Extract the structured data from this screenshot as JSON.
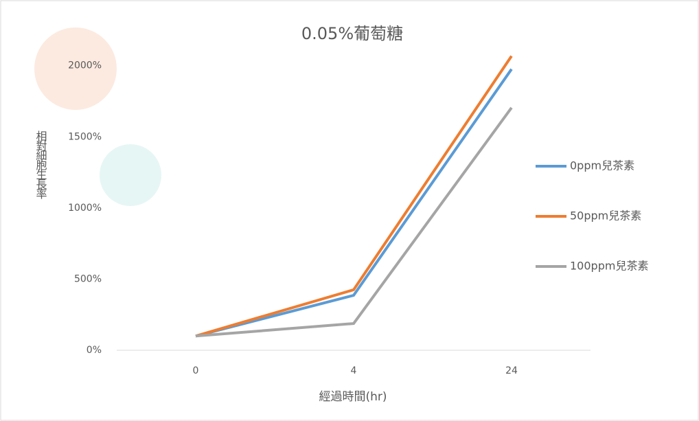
{
  "chart_data": {
    "type": "line",
    "title": "0.05%葡萄糖",
    "x_label": "經過時間(hr)",
    "y_label": "相對細胞生長率",
    "categories": [
      "0",
      "4",
      "24"
    ],
    "series": [
      {
        "name": "0ppm兒茶素",
        "color": "#5b9bd5",
        "values": [
          100,
          386,
          1976
        ]
      },
      {
        "name": "50ppm兒茶素",
        "color": "#ed7d31",
        "values": [
          100,
          425,
          2068
        ]
      },
      {
        "name": "100ppm兒茶素",
        "color": "#a5a5a5",
        "values": [
          100,
          188,
          1705
        ]
      }
    ],
    "ylim": [
      0,
      2100
    ],
    "yticks": [
      {
        "value": 0,
        "label": "0%"
      },
      {
        "value": 500,
        "label": "500%"
      },
      {
        "value": 1000,
        "label": "1000%"
      },
      {
        "value": 1500,
        "label": "1500%"
      },
      {
        "value": 2000,
        "label": "2000%"
      }
    ],
    "legend": "right"
  }
}
